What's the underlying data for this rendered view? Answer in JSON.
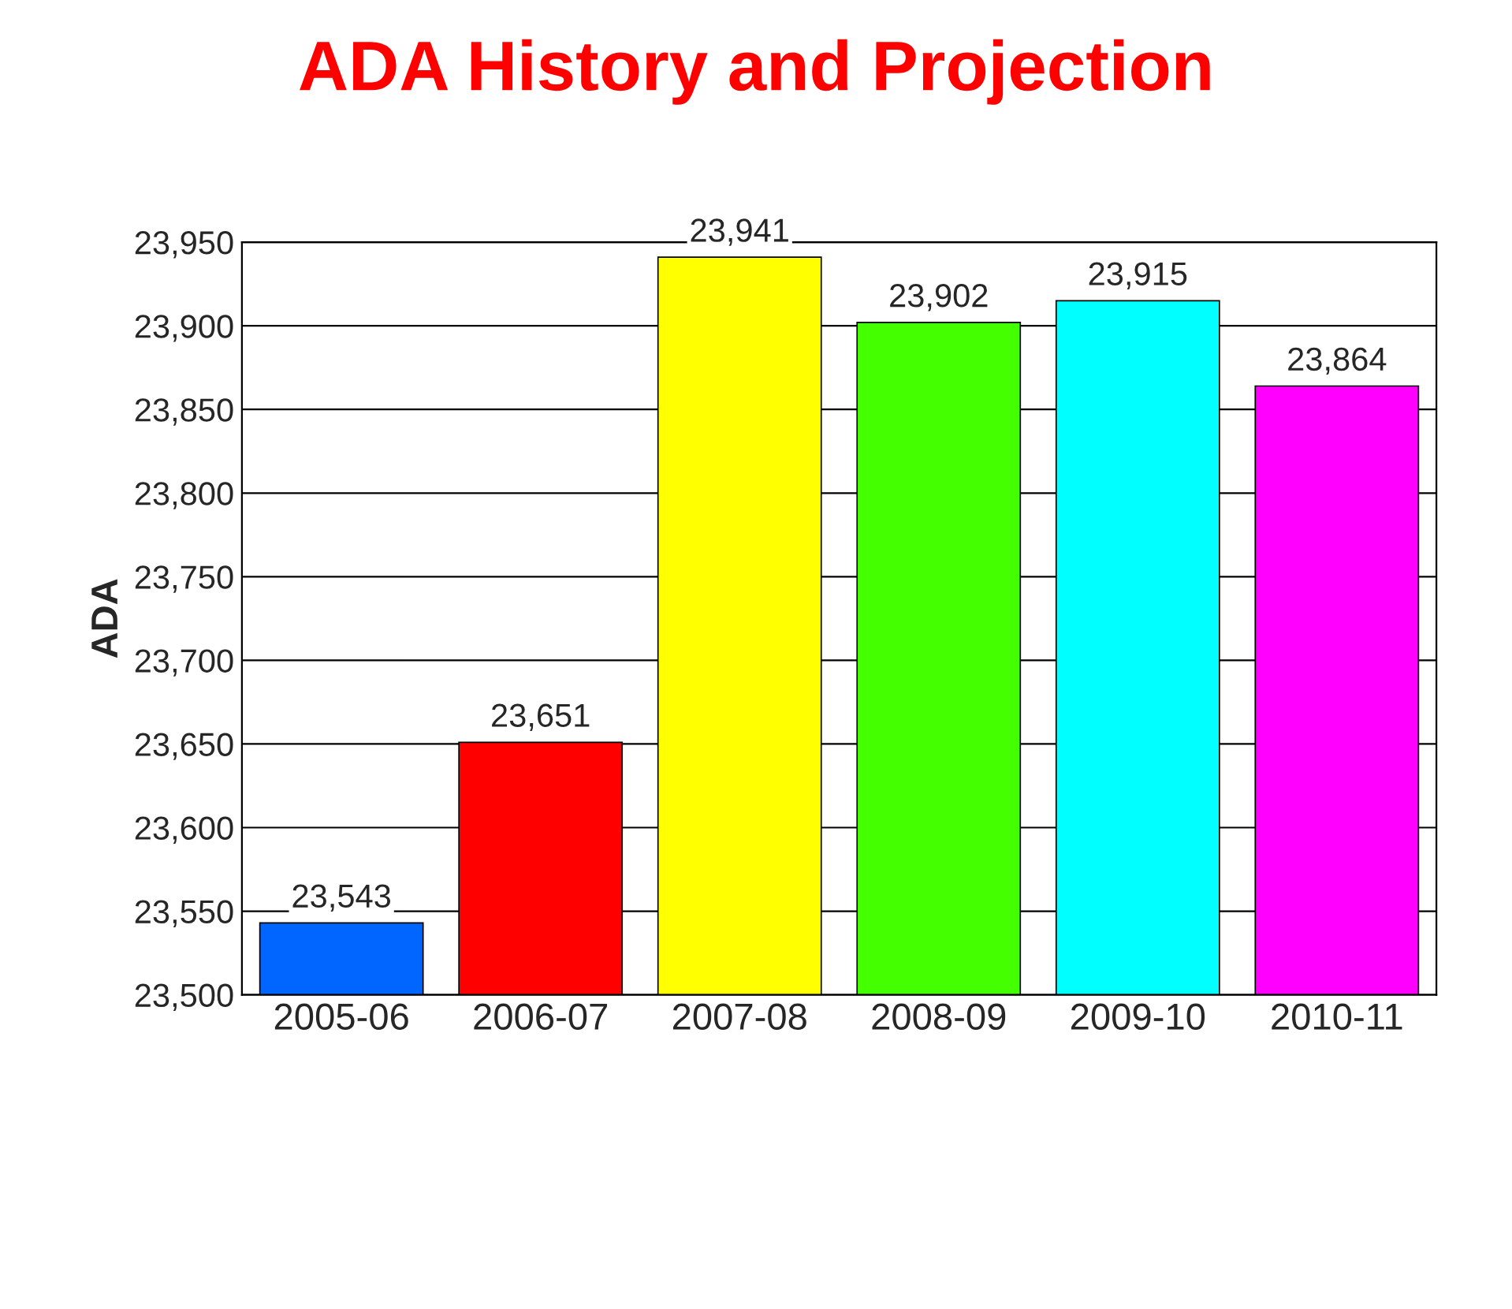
{
  "chart_data": {
    "type": "bar",
    "title": "ADA History and Projection",
    "ylabel": "ADA",
    "categories": [
      "2005-06",
      "2006-07",
      "2007-08",
      "2008-09",
      "2009-10",
      "2010-11"
    ],
    "values": [
      23543,
      23651,
      23941,
      23902,
      23915,
      23864
    ],
    "colors": [
      "#0066ff",
      "#ff0000",
      "#ffff00",
      "#44ff00",
      "#00ffff",
      "#ff00ff"
    ],
    "value_labels": [
      "23,543",
      "23,651",
      "23,941",
      "23,902",
      "23,915",
      "23,864"
    ],
    "ylim": [
      23500,
      23950
    ],
    "yticks": [
      {
        "value": 23500,
        "label": "23,500"
      },
      {
        "value": 23550,
        "label": "23,550"
      },
      {
        "value": 23600,
        "label": "23,600"
      },
      {
        "value": 23650,
        "label": "23,650"
      },
      {
        "value": 23700,
        "label": "23,700"
      },
      {
        "value": 23750,
        "label": "23,750"
      },
      {
        "value": 23800,
        "label": "23,800"
      },
      {
        "value": 23850,
        "label": "23,850"
      },
      {
        "value": 23900,
        "label": "23,900"
      },
      {
        "value": 23950,
        "label": "23,950"
      }
    ],
    "grid": "y",
    "legend": false
  }
}
